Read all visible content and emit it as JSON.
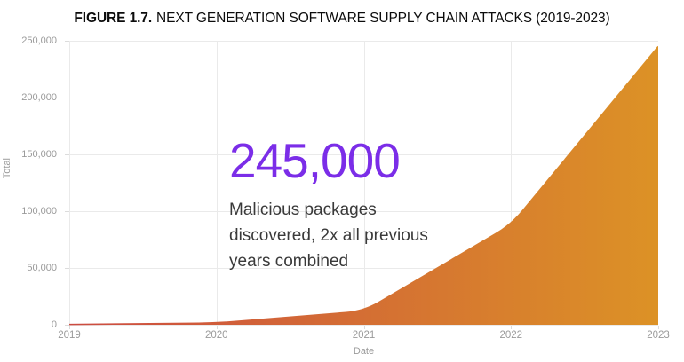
{
  "title": {
    "prefix": "FIGURE 1.7.",
    "text": "NEXT GENERATION SOFTWARE SUPPLY CHAIN ATTACKS (2019-2023)"
  },
  "callout": {
    "value": "245,000",
    "lines": [
      "Malicious packages",
      "discovered, 2x all previous",
      "years combined"
    ]
  },
  "chart_data": {
    "type": "area",
    "title": "Next Generation Software Supply Chain Attacks (2019-2023)",
    "x": [
      2019,
      2020,
      2021,
      2022,
      2023
    ],
    "series": [
      {
        "name": "Total",
        "values": [
          300,
          1500,
          12000,
          88000,
          245000
        ]
      }
    ],
    "xlabel": "Date",
    "ylabel": "Total",
    "ylim": [
      0,
      250000
    ],
    "ytick_labels": [
      "0",
      "50,000",
      "100,000",
      "150,000",
      "200,000",
      "250,000"
    ],
    "xtick_labels": [
      "2019",
      "2020",
      "2021",
      "2022",
      "2023"
    ],
    "grid": true,
    "legend": "none",
    "annotation": "245,000 malicious packages discovered, 2x all previous years combined",
    "colors": {
      "area_gradient_start": "#CC4B41",
      "area_gradient_end": "#DC9226",
      "accent_number": "#7B2DE8",
      "gridline": "#eaeaea",
      "tick": "#dcdcdc",
      "axis_text": "#9a9a9a",
      "body_text": "#3a3a3a",
      "title_text": "#0c0c0c"
    }
  }
}
